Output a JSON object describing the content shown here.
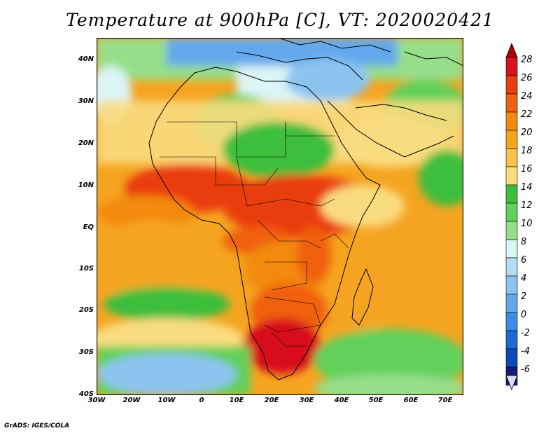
{
  "title": "Temperature at 900hPa [C], VT: 2020020421",
  "credit": "GrADS: IGES/COLA",
  "map": {
    "lat_range": [
      -40,
      45
    ],
    "lon_range": [
      -30,
      75
    ],
    "lat_ticks": [
      "40N",
      "30N",
      "20N",
      "10N",
      "EQ",
      "10S",
      "20S",
      "30S",
      "40S"
    ],
    "lon_ticks": [
      "30W",
      "20W",
      "10W",
      "0",
      "10E",
      "20E",
      "30E",
      "40E",
      "50E",
      "60E",
      "70E"
    ]
  },
  "colorbar": {
    "labels": [
      "28",
      "26",
      "24",
      "22",
      "20",
      "18",
      "16",
      "14",
      "12",
      "10",
      "8",
      "6",
      "4",
      "2",
      "0",
      "-2",
      "-4",
      "-6"
    ],
    "colors": [
      "#d8111c",
      "#ea3d10",
      "#f06010",
      "#f38a0e",
      "#f5a420",
      "#f9c248",
      "#fadc80",
      "#3cbe3c",
      "#62d05a",
      "#96de8a",
      "#dcf5f5",
      "#b4dcf5",
      "#8cc4f0",
      "#64a8ec",
      "#3c8ce6",
      "#1e6ad4",
      "#0c4ab8",
      "#141e78"
    ],
    "over_color": "#b0000c",
    "under_color": "#dcdcf8"
  }
}
